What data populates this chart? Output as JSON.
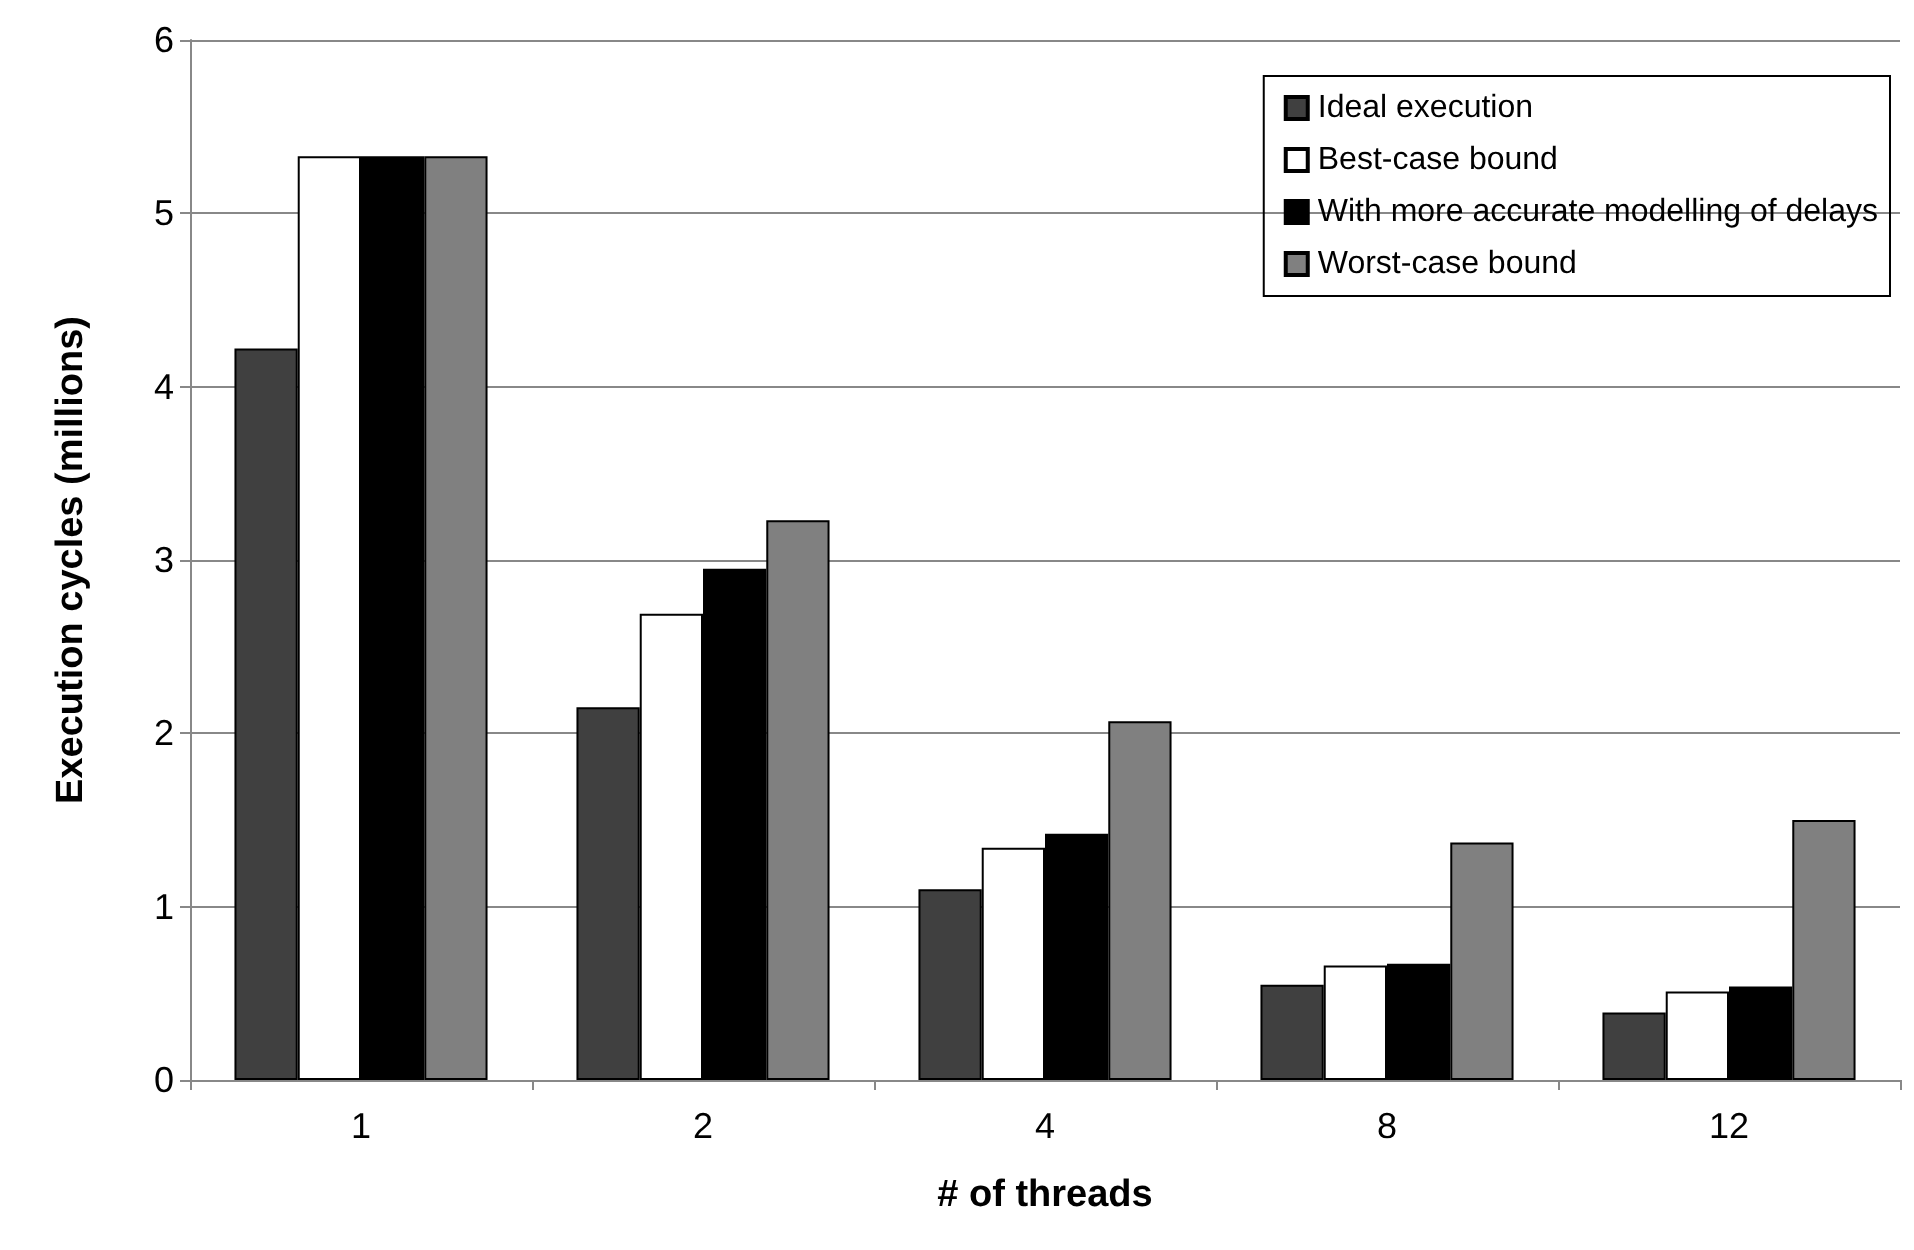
{
  "chart_data": {
    "type": "bar",
    "xlabel": "# of threads",
    "ylabel": "Execution cycles (millions)",
    "categories": [
      "1",
      "2",
      "4",
      "8",
      "12"
    ],
    "series": [
      {
        "name": "Ideal execution",
        "color": "#404040",
        "values": [
          4.22,
          2.15,
          1.1,
          0.55,
          0.39
        ]
      },
      {
        "name": "Best-case bound",
        "color": "#ffffff",
        "values": [
          5.33,
          2.69,
          1.34,
          0.66,
          0.51
        ]
      },
      {
        "name": "With more accurate modelling of delays",
        "color": "#000000",
        "values": [
          5.33,
          2.95,
          1.42,
          0.67,
          0.54
        ]
      },
      {
        "name": "Worst-case bound",
        "color": "#808080",
        "values": [
          5.33,
          3.23,
          2.07,
          1.37,
          1.5
        ]
      }
    ],
    "ylim": [
      0,
      6
    ],
    "yticks": [
      0,
      1,
      2,
      3,
      4,
      5,
      6
    ],
    "grid": "y",
    "legend": "top right"
  }
}
